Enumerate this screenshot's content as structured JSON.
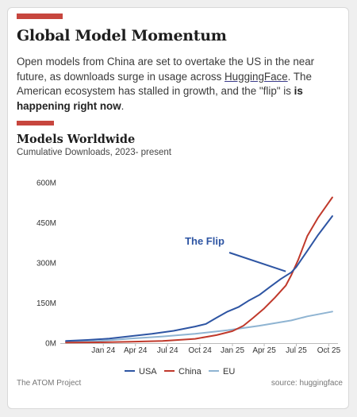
{
  "header": {
    "title": "Global Model Momentum",
    "desc_part1": "Open models from China are set to overtake the US in the near future, as downloads surge in usage across ",
    "desc_link": "HuggingFace",
    "desc_part2": ". The American ecosystem has stalled in growth, and the \"flip\" is ",
    "desc_bold": "is happening right now",
    "desc_end": "."
  },
  "footer": {
    "left": "The ATOM Project",
    "right": "source: huggingface"
  },
  "colors": {
    "accent": "#c7463e",
    "usa": "#2e55a3",
    "china": "#c0392b",
    "eu": "#8fb4d2",
    "annotation": "#2e55a3"
  },
  "chart_data": {
    "type": "line",
    "title": "Models Worldwide",
    "subtitle": "Cumulative Downloads, 2023- present",
    "xlabel": "",
    "ylabel": "",
    "x_tick_labels": [
      "Jan 24",
      "Apr 24",
      "Jul 24",
      "Oct 24",
      "Jan 25",
      "Apr 25",
      "Jul 25",
      "Oct 25"
    ],
    "y_tick_labels": [
      "0M",
      "150M",
      "300M",
      "450M",
      "600M"
    ],
    "y_ticks": [
      0,
      150,
      300,
      450,
      600
    ],
    "ylim": [
      0,
      600
    ],
    "y_unit": "M",
    "grid": false,
    "legend_position": "bottom",
    "annotation": {
      "text": "The Flip",
      "x": "2025-06-15",
      "y": 280
    },
    "series": [
      {
        "name": "USA",
        "color": "#2e55a3",
        "points": [
          [
            "2023-10-01",
            8
          ],
          [
            "2023-12-01",
            12
          ],
          [
            "2024-02-01",
            17
          ],
          [
            "2024-04-01",
            26
          ],
          [
            "2024-06-01",
            35
          ],
          [
            "2024-08-01",
            46
          ],
          [
            "2024-10-01",
            62
          ],
          [
            "2024-11-01",
            72
          ],
          [
            "2024-12-01",
            95
          ],
          [
            "2025-01-01",
            118
          ],
          [
            "2025-02-01",
            135
          ],
          [
            "2025-03-01",
            158
          ],
          [
            "2025-04-01",
            180
          ],
          [
            "2025-05-01",
            210
          ],
          [
            "2025-06-01",
            240
          ],
          [
            "2025-07-01",
            265
          ],
          [
            "2025-07-15",
            285
          ],
          [
            "2025-08-15",
            345
          ],
          [
            "2025-09-15",
            405
          ],
          [
            "2025-10-25",
            475
          ]
        ]
      },
      {
        "name": "China",
        "color": "#c0392b",
        "points": [
          [
            "2023-10-01",
            2
          ],
          [
            "2024-01-01",
            3
          ],
          [
            "2024-04-01",
            5
          ],
          [
            "2024-07-01",
            8
          ],
          [
            "2024-10-01",
            16
          ],
          [
            "2024-12-01",
            30
          ],
          [
            "2025-01-15",
            45
          ],
          [
            "2025-02-15",
            65
          ],
          [
            "2025-03-15",
            95
          ],
          [
            "2025-04-15",
            130
          ],
          [
            "2025-05-15",
            170
          ],
          [
            "2025-06-15",
            215
          ],
          [
            "2025-07-01",
            255
          ],
          [
            "2025-07-20",
            310
          ],
          [
            "2025-08-15",
            400
          ],
          [
            "2025-09-15",
            470
          ],
          [
            "2025-10-25",
            545
          ]
        ]
      },
      {
        "name": "EU",
        "color": "#8fb4d2",
        "points": [
          [
            "2023-10-01",
            4
          ],
          [
            "2024-01-01",
            8
          ],
          [
            "2024-04-01",
            17
          ],
          [
            "2024-07-01",
            25
          ],
          [
            "2024-10-01",
            35
          ],
          [
            "2025-01-01",
            48
          ],
          [
            "2025-04-01",
            65
          ],
          [
            "2025-07-01",
            85
          ],
          [
            "2025-08-15",
            100
          ],
          [
            "2025-10-25",
            118
          ]
        ]
      }
    ]
  }
}
